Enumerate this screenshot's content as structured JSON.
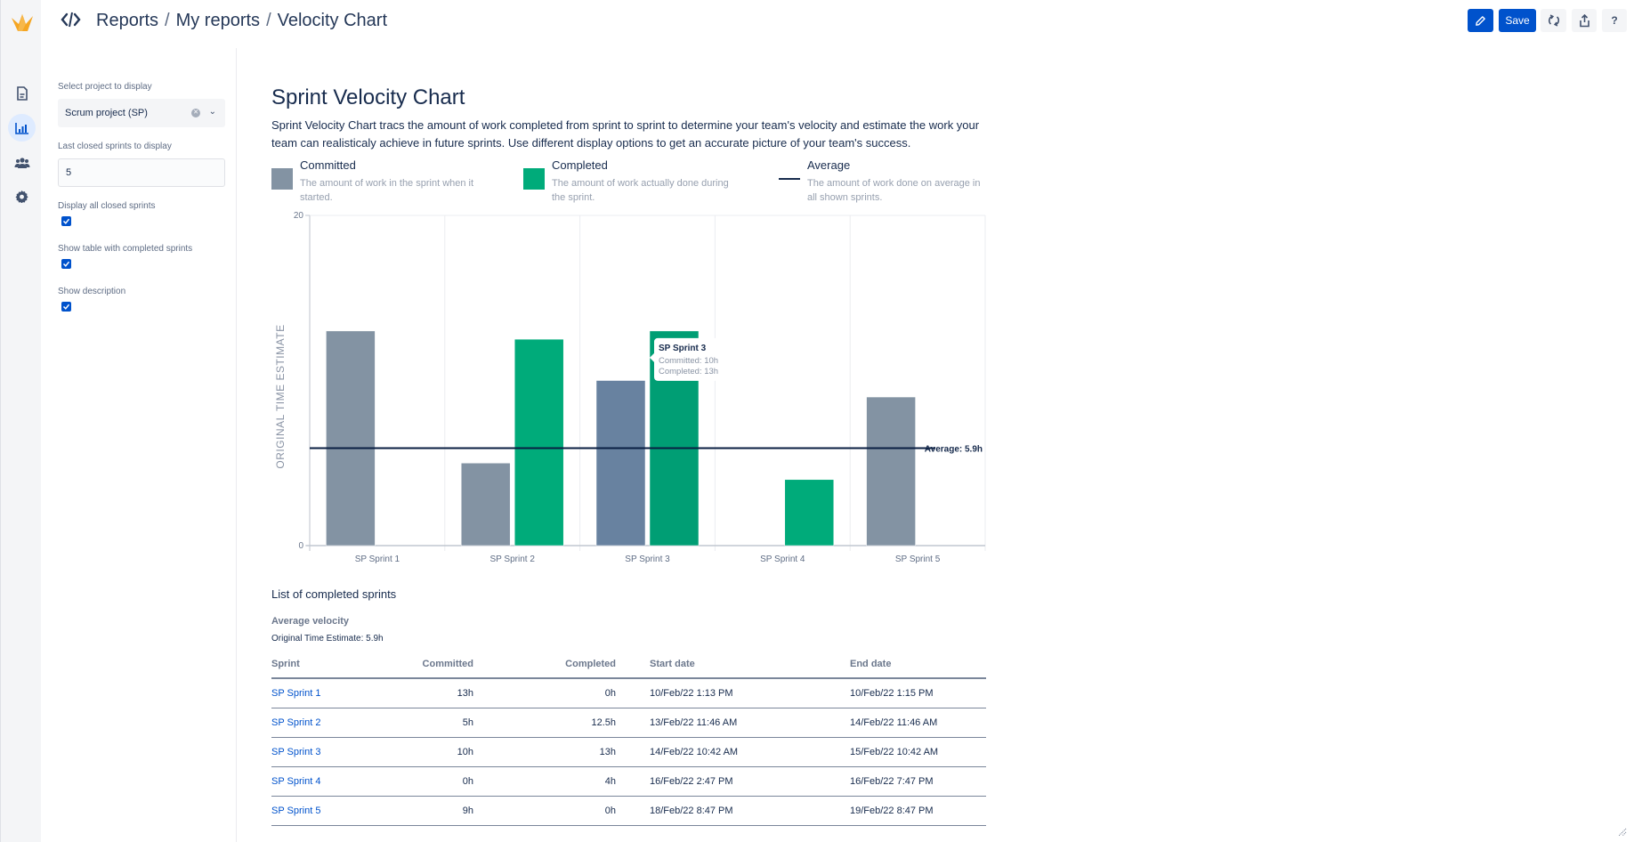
{
  "app": {
    "breadcrumb": [
      "Reports",
      "My reports",
      "Velocity Chart"
    ],
    "breadcrumb_separator": "/"
  },
  "toolbar": {
    "edit_icon": "pencil-icon",
    "save_label": "Save",
    "refresh_icon": "refresh-icon",
    "share_icon": "share-icon",
    "help_label": "?"
  },
  "rail": {
    "items": [
      {
        "icon": "document-icon"
      },
      {
        "icon": "chart-icon",
        "active": true
      },
      {
        "icon": "people-icon"
      },
      {
        "icon": "gear-icon"
      }
    ]
  },
  "settings": {
    "project_label": "Select project to display",
    "project_value": "Scrum project (SP)",
    "sprints_label": "Last closed sprints to display",
    "sprints_value": "5",
    "display_all_label": "Display all closed sprints",
    "display_all_checked": true,
    "show_table_label": "Show table with completed sprints",
    "show_table_checked": true,
    "show_description_label": "Show description",
    "show_description_checked": true
  },
  "main": {
    "title": "Sprint Velocity Chart",
    "description": "Sprint Velocity Chart tracs the amount of work completed from sprint to sprint to determine your team's velocity and estimate the work your team can realisticaly achieve in future sprints. Use different display options to get an accurate picture of your team's success.",
    "legend": [
      {
        "title": "Committed",
        "desc": "The amount of work in the sprint when it started.",
        "color": "#8393a3"
      },
      {
        "title": "Completed",
        "desc": "The amount of work actually done during the sprint.",
        "color": "#00ab7a"
      },
      {
        "title": "Average",
        "desc": "The amount of work done on average in all shown sprints.",
        "color": "#172b4d"
      }
    ],
    "list_title": "List of completed sprints",
    "avg_velocity_title": "Average velocity",
    "avg_velocity_value": "Original Time Estimate: 5.9h",
    "table": {
      "headers": [
        "Sprint",
        "Committed",
        "Completed",
        "Start date",
        "End date"
      ],
      "rows": [
        [
          "SP Sprint 1",
          "13h",
          "0h",
          "10/Feb/22 1:13 PM",
          "10/Feb/22 1:15 PM"
        ],
        [
          "SP Sprint 2",
          "5h",
          "12.5h",
          "13/Feb/22 11:46 AM",
          "14/Feb/22 11:46 AM"
        ],
        [
          "SP Sprint 3",
          "10h",
          "13h",
          "14/Feb/22 10:42 AM",
          "15/Feb/22 10:42 AM"
        ],
        [
          "SP Sprint 4",
          "0h",
          "4h",
          "16/Feb/22 2:47 PM",
          "16/Feb/22 7:47 PM"
        ],
        [
          "SP Sprint 5",
          "9h",
          "0h",
          "18/Feb/22 8:47 PM",
          "19/Feb/22 8:47 PM"
        ]
      ]
    }
  },
  "chart_data": {
    "type": "bar",
    "title": "Sprint Velocity Chart",
    "xlabel": "",
    "ylabel": "ORIGINAL TIME ESTIMATE",
    "ylim": [
      0,
      20
    ],
    "yticks": [
      "0",
      "20"
    ],
    "grid": true,
    "categories": [
      "SP Sprint 1",
      "SP Sprint 2",
      "SP Sprint 3",
      "SP Sprint 4",
      "SP Sprint 5"
    ],
    "series": [
      {
        "name": "Committed",
        "values": [
          13,
          5,
          10,
          0,
          9
        ],
        "color": "#8393a3"
      },
      {
        "name": "Completed",
        "values": [
          0,
          12.5,
          13,
          4,
          0
        ],
        "color": "#00ab7a"
      }
    ],
    "average": {
      "value": 5.9,
      "label": "Average: 5.9h"
    },
    "highlighted_category": "SP Sprint 3",
    "highlight_colors": {
      "Committed": "#6882a0",
      "Completed": "#009e74"
    },
    "tooltip": {
      "title": "SP Sprint 3",
      "lines": [
        "Committed: 10h",
        "Completed: 13h"
      ]
    }
  }
}
